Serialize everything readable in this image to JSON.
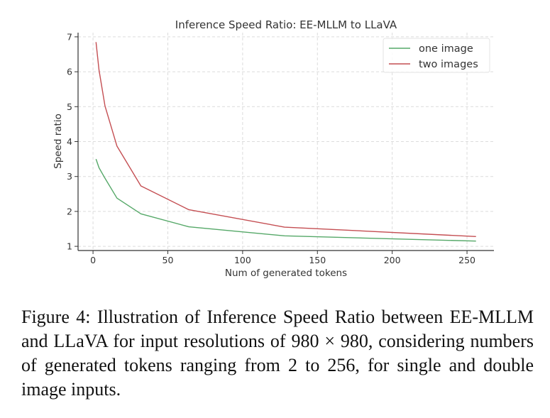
{
  "chart_data": {
    "type": "line",
    "title": "Inference Speed Ratio: EE-MLLM to LLaVA",
    "xlabel": "Num of generated tokens",
    "ylabel": "Speed ratio",
    "xlim": [
      -10,
      268
    ],
    "ylim": [
      0.88,
      7.12
    ],
    "xticks": [
      0,
      50,
      100,
      150,
      200,
      250
    ],
    "yticks": [
      1,
      2,
      3,
      4,
      5,
      6,
      7
    ],
    "grid": true,
    "legend_position": "top-right",
    "series": [
      {
        "name": "one image",
        "color": "#55a868",
        "points": [
          [
            2,
            3.5
          ],
          [
            4,
            3.25
          ],
          [
            8,
            2.95
          ],
          [
            16,
            2.38
          ],
          [
            32,
            1.93
          ],
          [
            64,
            1.56
          ],
          [
            128,
            1.3
          ],
          [
            256,
            1.15
          ]
        ]
      },
      {
        "name": "two images",
        "color": "#c44e52",
        "points": [
          [
            2,
            6.85
          ],
          [
            4,
            6.05
          ],
          [
            8,
            5.02
          ],
          [
            16,
            3.87
          ],
          [
            32,
            2.73
          ],
          [
            64,
            2.05
          ],
          [
            128,
            1.55
          ],
          [
            256,
            1.28
          ]
        ]
      }
    ]
  },
  "caption": "Figure 4: Illustration of Inference Speed Ratio between EE-MLLM and LLaVA for input resolutions of 980 × 980, considering numbers of generated tokens ranging from 2 to 256, for single and double image inputs."
}
